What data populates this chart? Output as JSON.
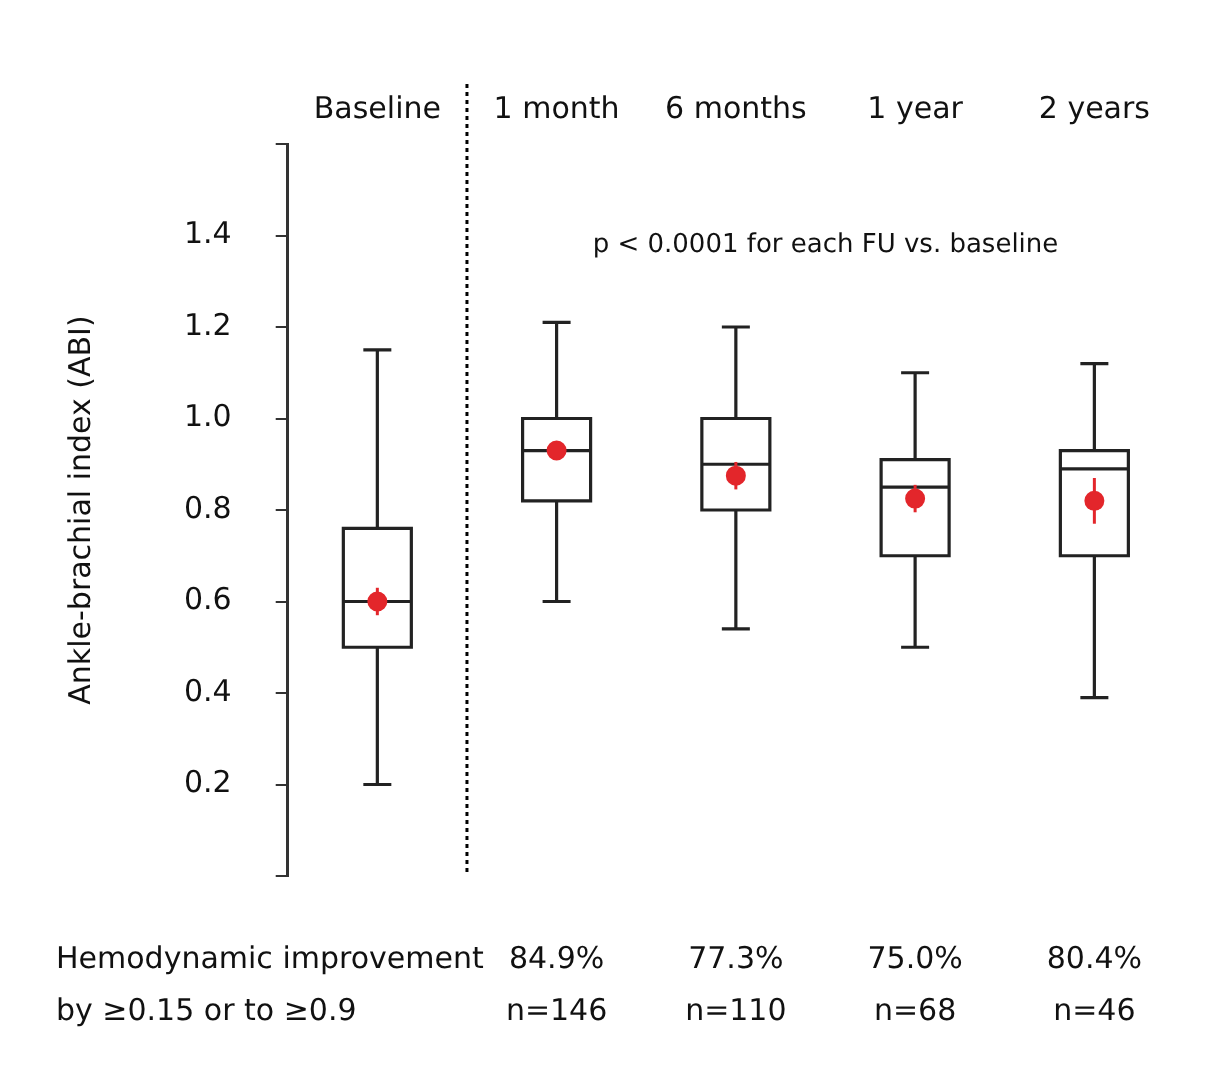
{
  "chart_data": {
    "type": "box",
    "ylabel": "Ankle-brachial index (ABI)",
    "categories": [
      "Baseline",
      "1 month",
      "6 months",
      "1 year",
      "2 years"
    ],
    "boxes": [
      {
        "low": 0.2,
        "q1": 0.5,
        "median": 0.6,
        "q3": 0.76,
        "high": 1.15
      },
      {
        "low": 0.6,
        "q1": 0.82,
        "median": 0.93,
        "q3": 1.0,
        "high": 1.21
      },
      {
        "low": 0.54,
        "q1": 0.8,
        "median": 0.9,
        "q3": 1.0,
        "high": 1.2
      },
      {
        "low": 0.5,
        "q1": 0.7,
        "median": 0.85,
        "q3": 0.91,
        "high": 1.1
      },
      {
        "low": 0.39,
        "q1": 0.7,
        "median": 0.89,
        "q3": 0.93,
        "high": 1.12
      }
    ],
    "series": [
      {
        "type": "scatter",
        "color": "#e3262b",
        "values": [
          0.6,
          0.93,
          0.875,
          0.825,
          0.82
        ],
        "errors": [
          0.03,
          0.02,
          0.03,
          0.03,
          0.05
        ]
      }
    ],
    "ylim": [
      0,
      1.6
    ],
    "yticks": [
      {
        "value": 0,
        "label": null
      },
      0.2,
      0.4,
      0.6,
      0.8,
      {
        "value": 1.0,
        "label": "1.0"
      },
      1.2,
      1.4,
      {
        "value": 1.6,
        "label": null
      }
    ],
    "annotations": [
      "p < 0.0001 for each FU vs. baseline",
      "Hemodynamic improvement\nby ≥0.15 or to ≥0.9",
      "84.9%\nn=146",
      "77.3%\nn=110",
      "75.0%\nn=68",
      "80.4%\nn=46"
    ],
    "grid": false,
    "legend": false,
    "marker": "circle"
  }
}
